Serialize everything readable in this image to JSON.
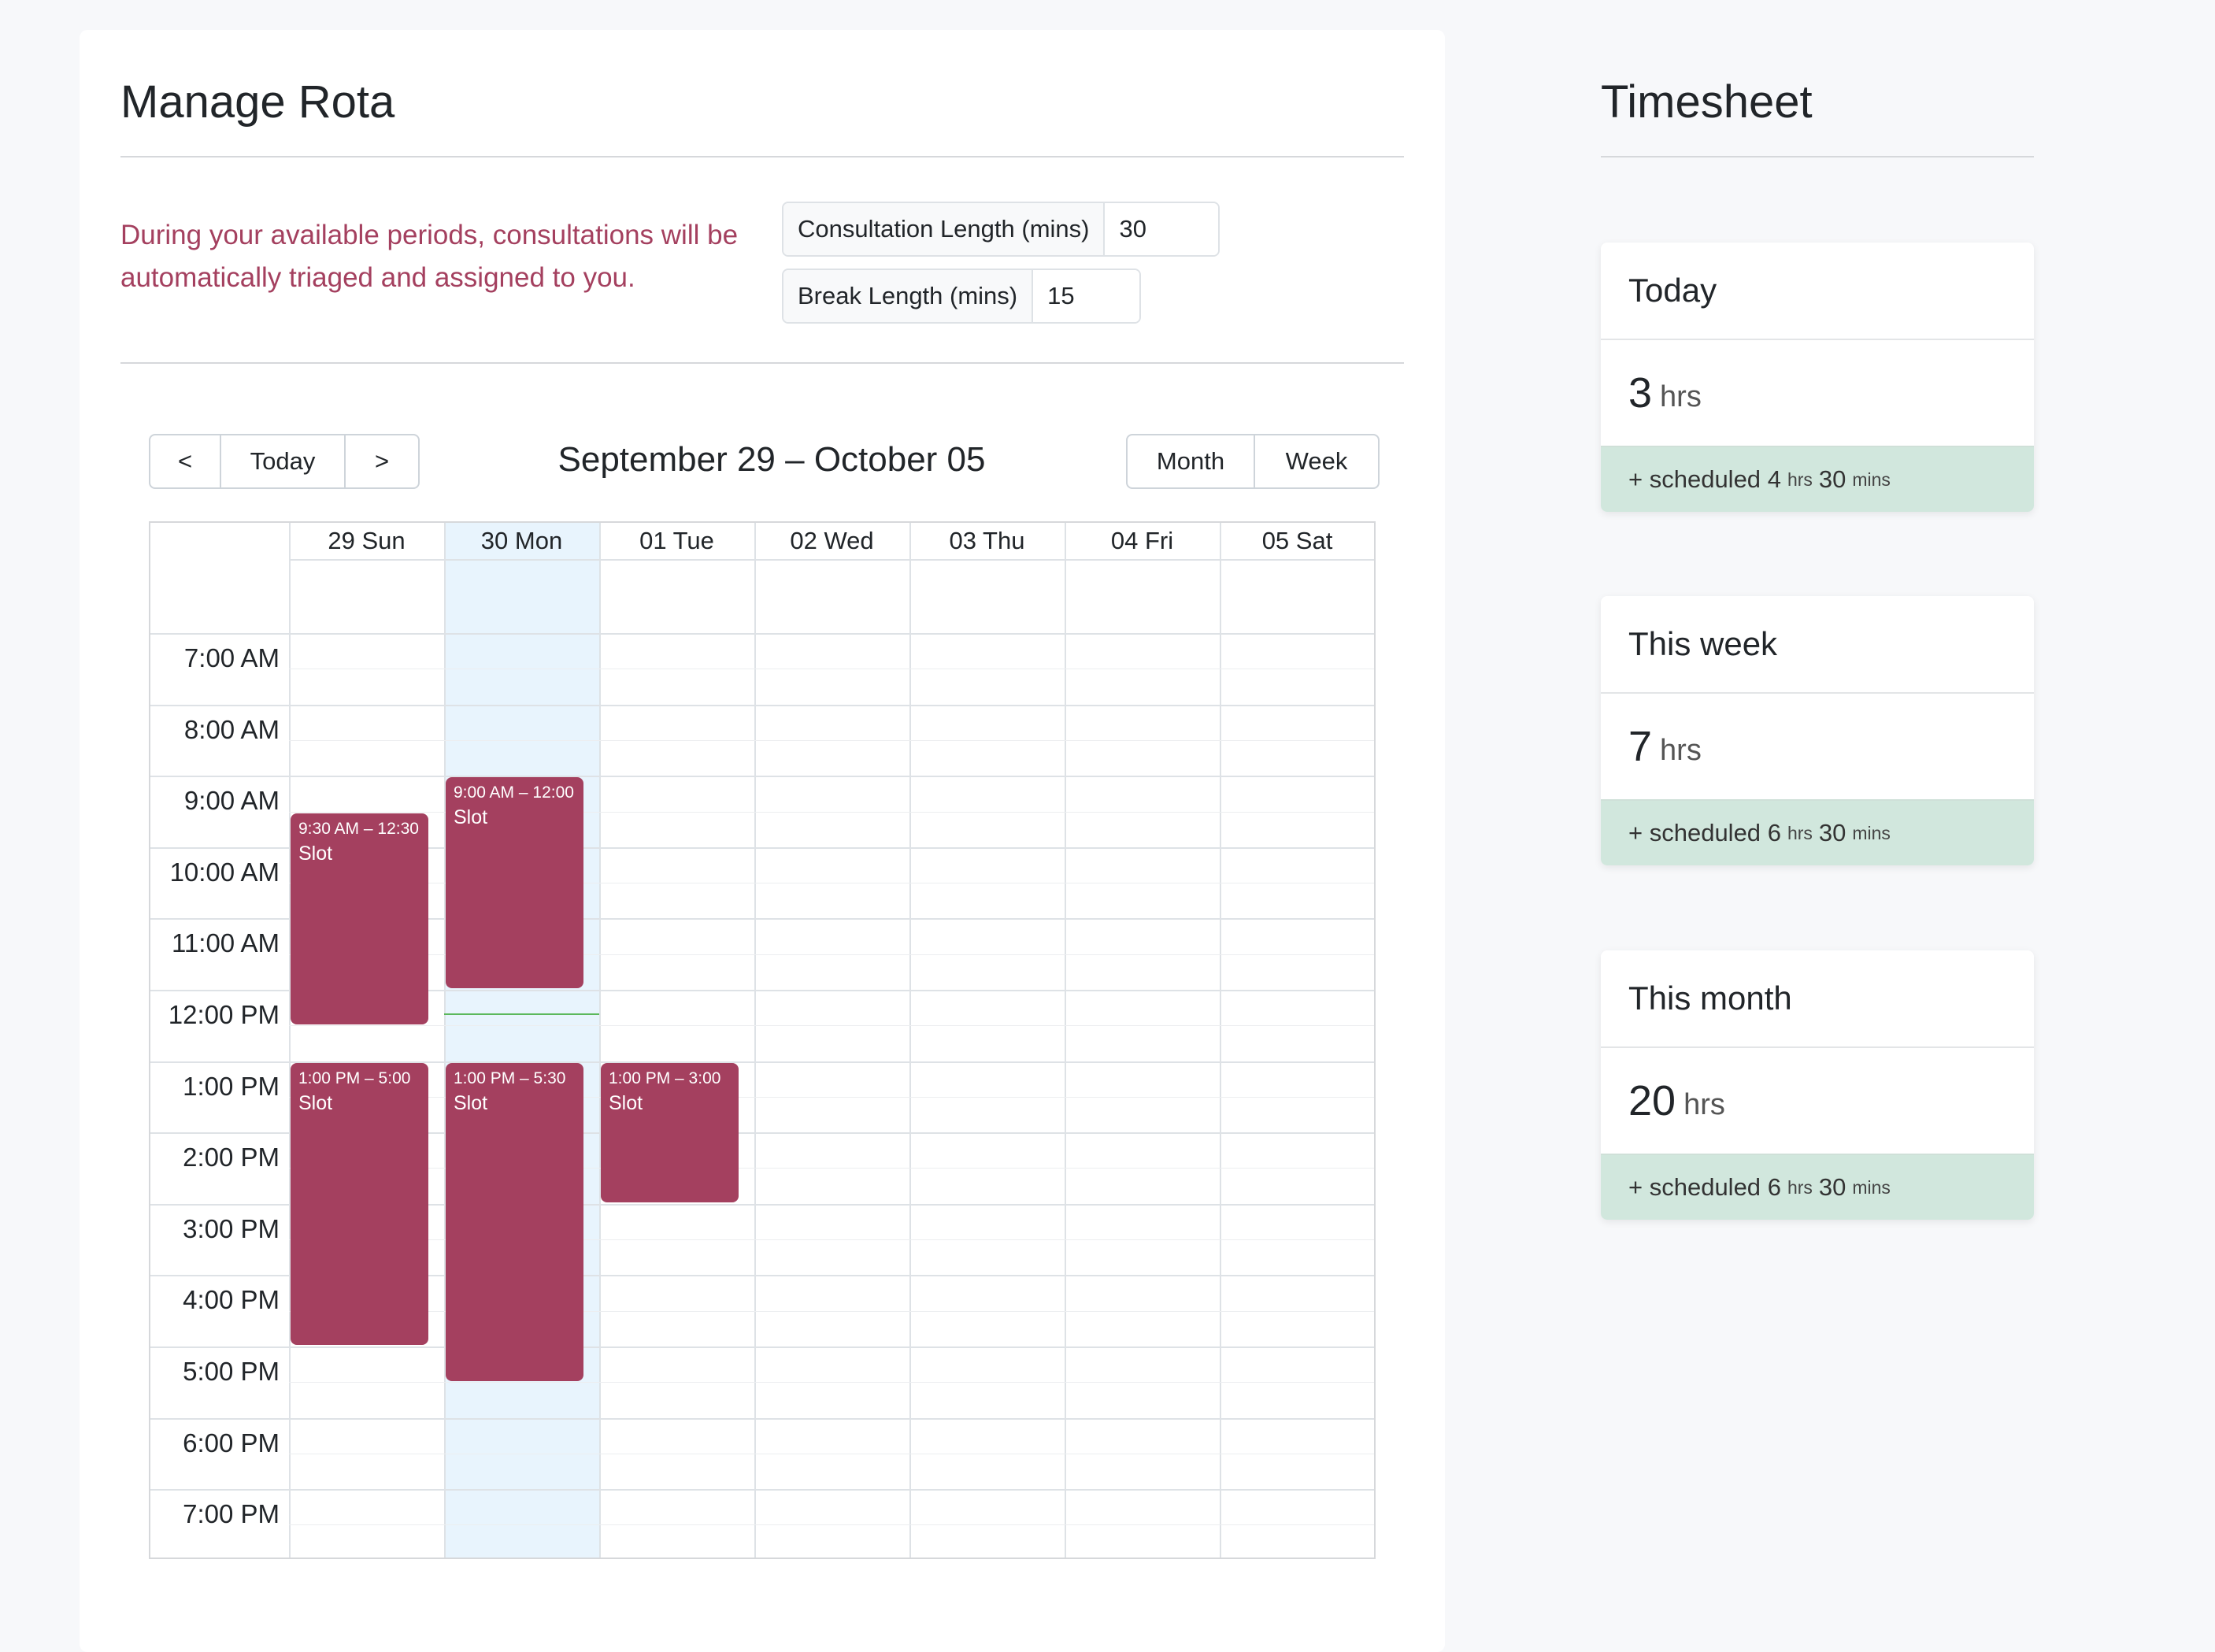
{
  "rota": {
    "title": "Manage Rota",
    "intro": "During your available periods, consultations will be automatically triaged and assigned to you.",
    "consultation": {
      "label": "Consultation Length (mins)",
      "value": "30"
    },
    "break": {
      "label": "Break Length (mins)",
      "value": "15"
    }
  },
  "calendar": {
    "nav": {
      "prev": "<",
      "today": "Today",
      "next": ">"
    },
    "title": "September 29 – October 05",
    "views": {
      "month": "Month",
      "week": "Week"
    },
    "days": [
      "29 Sun",
      "30 Mon",
      "01 Tue",
      "02 Wed",
      "03 Thu",
      "04 Fri",
      "05 Sat"
    ],
    "highlighted_day": "30 Mon",
    "times": [
      "7:00 AM",
      "8:00 AM",
      "9:00 AM",
      "10:00 AM",
      "11:00 AM",
      "12:00 PM",
      "1:00 PM",
      "2:00 PM",
      "3:00 PM",
      "4:00 PM",
      "5:00 PM",
      "6:00 PM",
      "7:00 PM"
    ],
    "events": [
      {
        "day": "29 Sun",
        "time": "9:30 AM – 12:30",
        "title": "Slot"
      },
      {
        "day": "30 Mon",
        "time": "9:00 AM – 12:00",
        "title": "Slot"
      },
      {
        "day": "29 Sun",
        "time": "1:00 PM – 5:00",
        "title": "Slot"
      },
      {
        "day": "30 Mon",
        "time": "1:00 PM – 5:30",
        "title": "Slot"
      },
      {
        "day": "01 Tue",
        "time": "1:00 PM – 3:00",
        "title": "Slot"
      }
    ]
  },
  "timesheet": {
    "title": "Timesheet",
    "cards": [
      {
        "label": "Today",
        "hours": "3",
        "unit": "hrs",
        "sched_prefix": "+ scheduled",
        "sched_hrs": "4",
        "sched_hrs_unit": "hrs",
        "sched_mins": "30",
        "sched_mins_unit": "mins"
      },
      {
        "label": "This week",
        "hours": "7",
        "unit": "hrs",
        "sched_prefix": "+ scheduled",
        "sched_hrs": "6",
        "sched_hrs_unit": "hrs",
        "sched_mins": "30",
        "sched_mins_unit": "mins"
      },
      {
        "label": "This month",
        "hours": "20",
        "unit": "hrs",
        "sched_prefix": "+ scheduled",
        "sched_hrs": "6",
        "sched_hrs_unit": "hrs",
        "sched_mins": "30",
        "sched_mins_unit": "mins"
      }
    ]
  },
  "colors": {
    "slot": "#a4405f",
    "today_bg": "#e8f4fd",
    "foot_bg": "#d1e7dd",
    "now_line": "#5cb85c"
  }
}
